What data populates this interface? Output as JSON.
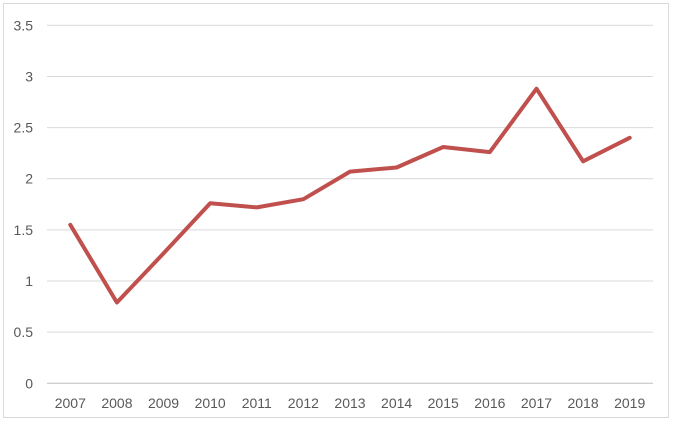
{
  "chart_data": {
    "type": "line",
    "title": "",
    "xlabel": "",
    "ylabel": "",
    "categories": [
      "2007",
      "2008",
      "2009",
      "2010",
      "2011",
      "2012",
      "2013",
      "2014",
      "2015",
      "2016",
      "2017",
      "2018",
      "2019"
    ],
    "series": [
      {
        "name": "Series 1",
        "values": [
          1.55,
          0.79,
          1.27,
          1.76,
          1.72,
          1.8,
          2.07,
          2.11,
          2.31,
          2.26,
          2.88,
          2.17,
          2.4
        ]
      }
    ],
    "ylim": [
      0,
      3.5
    ],
    "y_ticks": [
      "0",
      "0.5",
      "1",
      "1.5",
      "2",
      "2.5",
      "3",
      "3.5"
    ],
    "y_tick_values": [
      0,
      0.5,
      1,
      1.5,
      2,
      2.5,
      3,
      3.5
    ],
    "grid": "horizontal",
    "legend": "none",
    "colors": {
      "line": "#C0504D",
      "gridline": "#D9D9D9",
      "axis_line": "#BFBFBF",
      "tick_label": "#595959",
      "frame_border": "#D9D9D9",
      "background": "#FFFFFF"
    }
  }
}
